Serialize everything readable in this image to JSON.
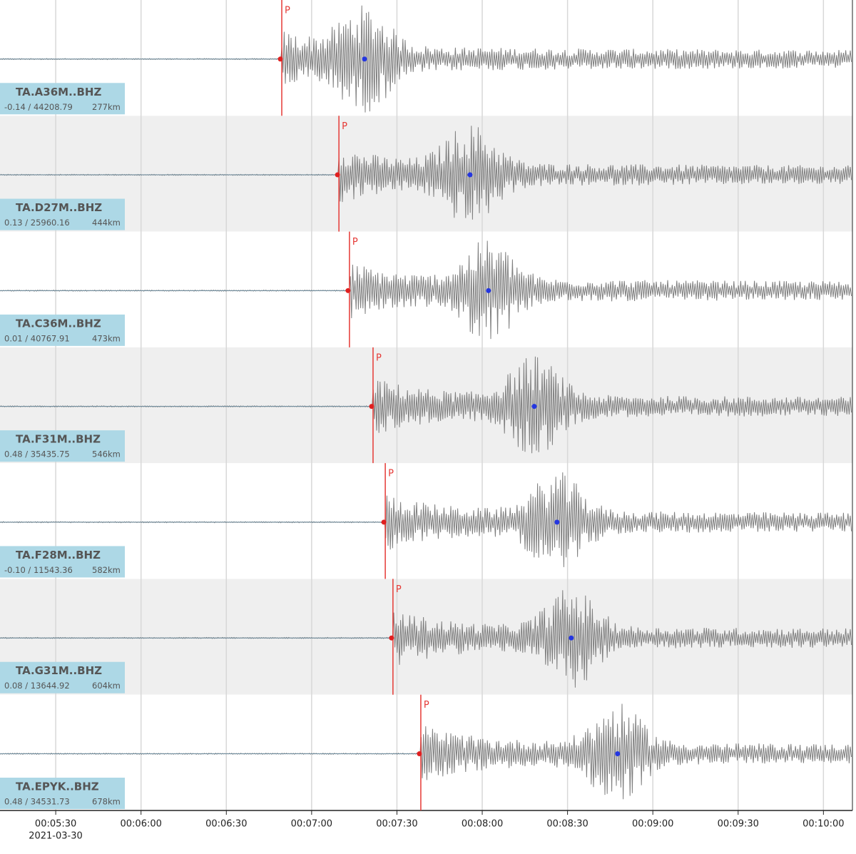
{
  "time_axis": {
    "xlim": [
      310.4,
      610.2
    ],
    "ticks": [
      {
        "value": 330,
        "label": "00:05:30"
      },
      {
        "value": 360,
        "label": "00:06:00"
      },
      {
        "value": 390,
        "label": "00:06:30"
      },
      {
        "value": 420,
        "label": "00:07:00"
      },
      {
        "value": 450,
        "label": "00:07:30"
      },
      {
        "value": 480,
        "label": "00:08:00"
      },
      {
        "value": 510,
        "label": "00:08:30"
      },
      {
        "value": 540,
        "label": "00:09:00"
      },
      {
        "value": 570,
        "label": "00:09:30"
      },
      {
        "value": 600,
        "label": "00:10:00"
      }
    ],
    "date": "2021-03-30"
  },
  "traces": [
    {
      "name": "TA.A36M..BHZ",
      "stats": "-0.14 / 44208.79",
      "distance": "277km",
      "phase": "P",
      "p_time": 409.5,
      "peak_time": 438.6
    },
    {
      "name": "TA.D27M..BHZ",
      "stats": "0.13 / 25960.16",
      "distance": "444km",
      "phase": "P",
      "p_time": 429.6,
      "peak_time": 475.7
    },
    {
      "name": "TA.C36M..BHZ",
      "stats": "0.01 / 40767.91",
      "distance": "473km",
      "phase": "P",
      "p_time": 433.3,
      "peak_time": 482.2
    },
    {
      "name": "TA.F31M..BHZ",
      "stats": "0.48 / 35435.75",
      "distance": "546km",
      "phase": "P",
      "p_time": 441.6,
      "peak_time": 498.3
    },
    {
      "name": "TA.F28M..BHZ",
      "stats": "-0.10 / 11543.36",
      "distance": "582km",
      "phase": "P",
      "p_time": 445.9,
      "peak_time": 506.3
    },
    {
      "name": "TA.G31M..BHZ",
      "stats": "0.08 / 13644.92",
      "distance": "604km",
      "phase": "P",
      "p_time": 448.6,
      "peak_time": 511.3
    },
    {
      "name": "TA.EPYK..BHZ",
      "stats": "0.48 / 34531.73",
      "distance": "678km",
      "phase": "P",
      "p_time": 458.4,
      "peak_time": 527.6
    }
  ]
}
